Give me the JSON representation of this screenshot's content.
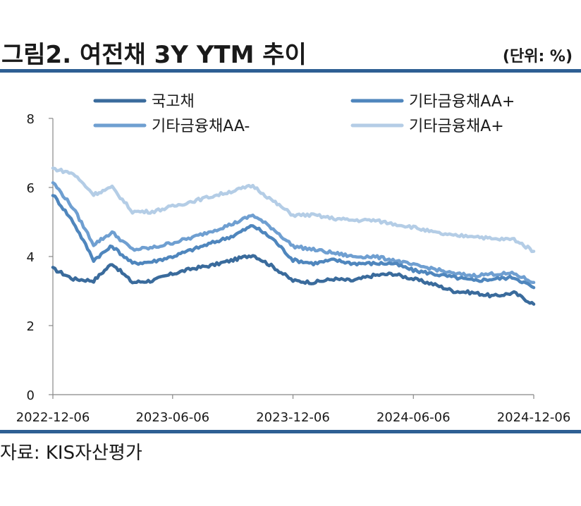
{
  "header": {
    "title": "그림2. 여전채 3Y YTM 추이",
    "unit": "(단위: %)"
  },
  "footer": {
    "source": "자료: KIS자산평가"
  },
  "colors": {
    "rule": "#2e5f93"
  },
  "chart_data": {
    "type": "line",
    "x": [
      "2022-12-06",
      "2023-01-06",
      "2023-02-06",
      "2023-03-06",
      "2023-04-06",
      "2023-05-06",
      "2023-06-06",
      "2023-07-06",
      "2023-08-06",
      "2023-09-06",
      "2023-10-06",
      "2023-11-06",
      "2023-12-06",
      "2024-01-06",
      "2024-02-06",
      "2024-03-06",
      "2024-04-06",
      "2024-05-06",
      "2024-06-06",
      "2024-07-06",
      "2024-08-06",
      "2024-09-06",
      "2024-10-06",
      "2024-11-06",
      "2024-12-06"
    ],
    "x_ticks": [
      "2022-12-06",
      "2023-06-06",
      "2023-12-06",
      "2024-06-06",
      "2024-12-06"
    ],
    "y_ticks": [
      "0",
      "2",
      "4",
      "6",
      "8"
    ],
    "ylim": [
      0,
      8
    ],
    "grid": false,
    "legend_position": "top",
    "series": [
      {
        "name": "국고채",
        "color": "#3a6b9c",
        "values": [
          3.65,
          3.35,
          3.3,
          3.8,
          3.25,
          3.3,
          3.5,
          3.65,
          3.75,
          3.9,
          4.05,
          3.7,
          3.3,
          3.25,
          3.35,
          3.3,
          3.45,
          3.5,
          3.35,
          3.2,
          3.0,
          2.95,
          2.85,
          2.95,
          2.62
        ]
      },
      {
        "name": "기타금융채AA+",
        "color": "#4f86bd",
        "values": [
          5.8,
          5.0,
          3.9,
          4.3,
          3.8,
          3.85,
          4.0,
          4.2,
          4.4,
          4.6,
          4.9,
          4.5,
          3.9,
          3.8,
          3.9,
          3.8,
          3.8,
          3.8,
          3.6,
          3.5,
          3.4,
          3.3,
          3.35,
          3.4,
          3.1
        ]
      },
      {
        "name": "기타금융채AA-",
        "color": "#6f9fd1",
        "values": [
          6.15,
          5.4,
          4.35,
          4.7,
          4.2,
          4.25,
          4.4,
          4.55,
          4.75,
          4.95,
          5.2,
          4.8,
          4.3,
          4.2,
          4.1,
          4.0,
          4.0,
          3.9,
          3.75,
          3.65,
          3.5,
          3.45,
          3.5,
          3.5,
          3.25
        ]
      },
      {
        "name": "기타금융채A+",
        "color": "#b4cde6",
        "values": [
          6.55,
          6.4,
          5.8,
          6.0,
          5.3,
          5.3,
          5.45,
          5.6,
          5.75,
          5.9,
          6.05,
          5.6,
          5.2,
          5.2,
          5.1,
          5.05,
          5.05,
          4.95,
          4.85,
          4.7,
          4.6,
          4.6,
          4.5,
          4.5,
          4.15
        ]
      }
    ]
  }
}
